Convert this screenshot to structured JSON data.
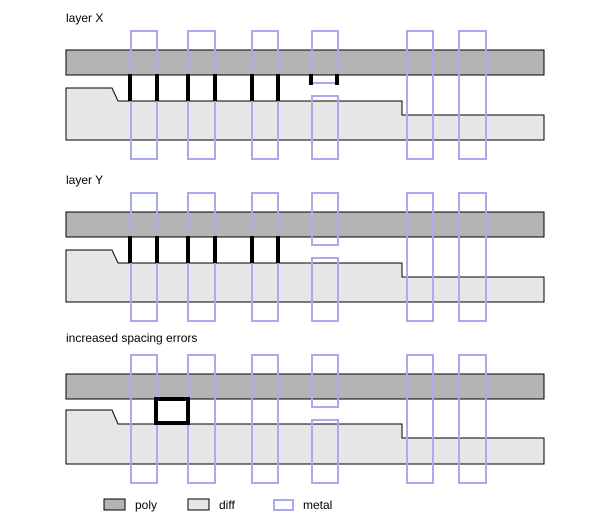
{
  "panels": [
    {
      "title": "layer X"
    },
    {
      "title": "layer Y"
    },
    {
      "title": "increased spacing errors"
    }
  ],
  "legend": [
    {
      "label": "poly",
      "swatch": "poly"
    },
    {
      "label": "diff",
      "swatch": "diff"
    },
    {
      "label": "metal",
      "swatch": "metal"
    }
  ],
  "colors": {
    "poly_fill": "#b4b4b4",
    "diff_fill": "#e6e6e6",
    "outline": "#000000",
    "metal_stroke": "#aaaaf0",
    "marker": "#000000",
    "background": "#ffffff"
  }
}
